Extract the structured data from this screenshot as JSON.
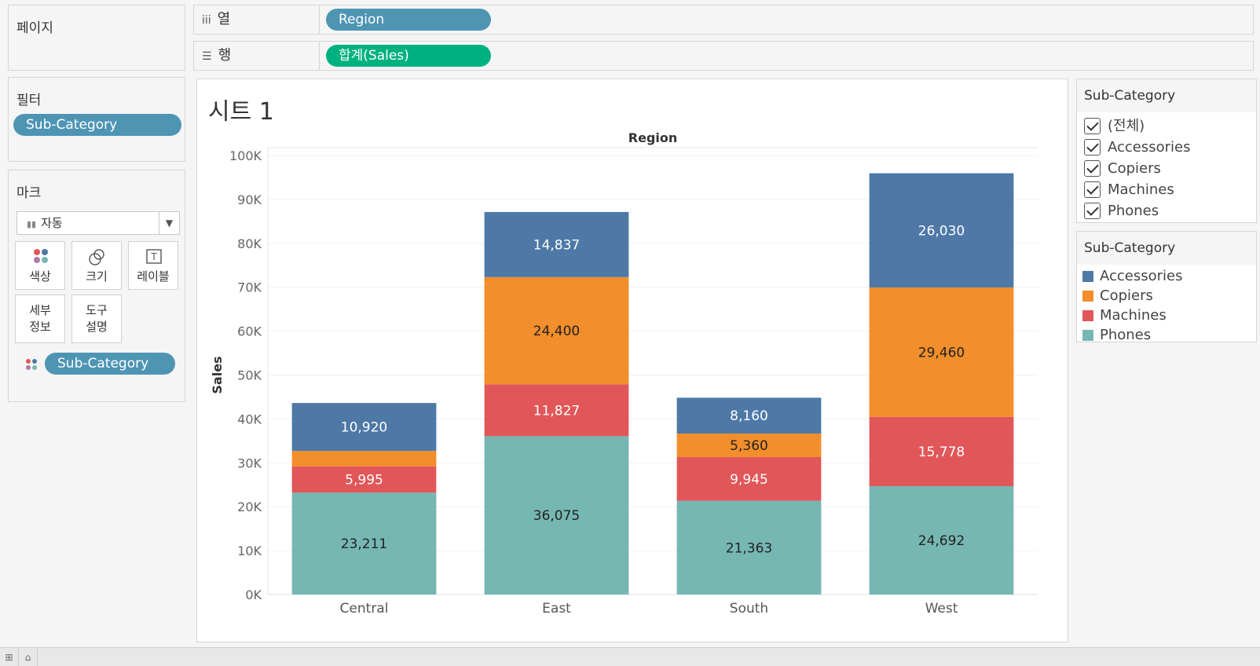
{
  "pages_panel": {
    "title": "페이지"
  },
  "filters_panel": {
    "title": "필터",
    "pill": "Sub-Category"
  },
  "marks_panel": {
    "title": "마크",
    "type_select": "자동",
    "buttons": {
      "color": "색상",
      "size": "크기",
      "label": "레이블",
      "detail_1": "세부",
      "detail_2": "정보",
      "tooltip_1": "도구",
      "tooltip_2": "설명"
    },
    "color_pill": "Sub-Category"
  },
  "shelves": {
    "columns": {
      "label": "열",
      "pill": "Region"
    },
    "rows": {
      "label": "행",
      "pill": "합계(Sales)"
    }
  },
  "sheet": {
    "title": "시트 1"
  },
  "filter_card": {
    "title": "Sub-Category",
    "items": [
      "(전체)",
      "Accessories",
      "Copiers",
      "Machines",
      "Phones"
    ]
  },
  "legend_card": {
    "title": "Sub-Category",
    "items": [
      {
        "label": "Accessories",
        "color": "#4e79a7"
      },
      {
        "label": "Copiers",
        "color": "#f28e2b"
      },
      {
        "label": "Machines",
        "color": "#e15759"
      },
      {
        "label": "Phones",
        "color": "#76b7b2"
      }
    ]
  },
  "chart_data": {
    "type": "bar",
    "stacked": true,
    "title": "Region",
    "xlabel": "",
    "ylabel": "Sales",
    "categories": [
      "Central",
      "East",
      "South",
      "West"
    ],
    "ylim": [
      0,
      100000
    ],
    "yticks": [
      "0K",
      "10K",
      "20K",
      "30K",
      "40K",
      "50K",
      "60K",
      "70K",
      "80K",
      "90K",
      "100K"
    ],
    "series": [
      {
        "name": "Phones",
        "color": "#76b7b2",
        "values": [
          23211,
          36075,
          21363,
          24692
        ],
        "labels": [
          "23,211",
          "36,075",
          "21,363",
          "24,692"
        ],
        "label_color": "#222222"
      },
      {
        "name": "Machines",
        "color": "#e15759",
        "values": [
          5995,
          11827,
          9945,
          15778
        ],
        "labels": [
          "5,995",
          "11,827",
          "9,945",
          "15,778"
        ],
        "label_color": "#ffffff"
      },
      {
        "name": "Copiers",
        "color": "#f28e2b",
        "values": [
          3500,
          24400,
          5360,
          29460
        ],
        "labels": [
          "",
          "24,400",
          "5,360",
          "29,460"
        ],
        "label_color": "#222222"
      },
      {
        "name": "Accessories",
        "color": "#4e79a7",
        "values": [
          10920,
          14837,
          8160,
          26030
        ],
        "labels": [
          "10,920",
          "14,837",
          "8,160",
          "26,030"
        ],
        "label_color": "#ffffff"
      }
    ]
  }
}
